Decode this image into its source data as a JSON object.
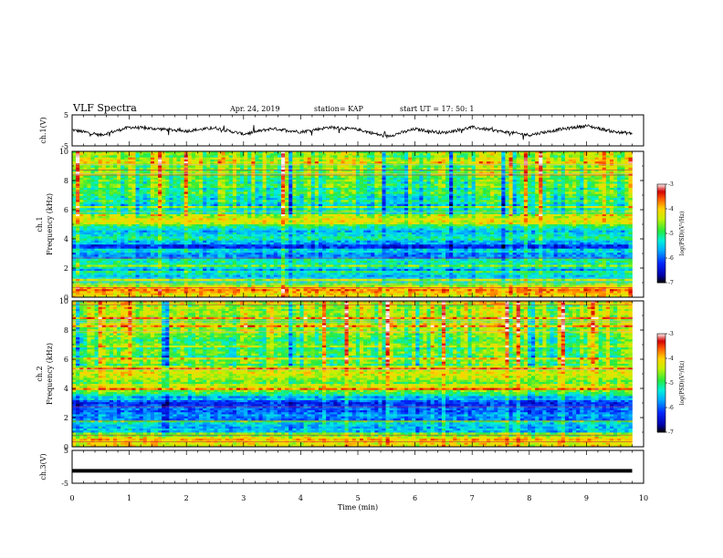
{
  "header": {
    "title": "VLF Spectra",
    "date": "Apr. 24, 2019",
    "station": "station= KAP",
    "start": "start  UT =   17: 50: 1"
  },
  "colorbar": {
    "label": "log(PSD)(V²/Hz)",
    "ticks": [
      "-3",
      "-4",
      "-5",
      "-6",
      "-7"
    ],
    "colors": [
      "#ffffff",
      "#ff0000",
      "#ffff00",
      "#00ff00",
      "#00ffff",
      "#0000ff",
      "#000000"
    ]
  },
  "chart_data": [
    {
      "type": "line",
      "panel": "ch1-waveform",
      "ylabel": "ch.1(V)",
      "ylim": [
        -5,
        5
      ],
      "yticks": [
        "5",
        "-5"
      ],
      "xlim": [
        0,
        10
      ],
      "description_series": "noisy voltage trace fluctuating roughly between -3 and 3 V",
      "x": [
        0,
        0.5,
        1,
        1.5,
        2,
        2.5,
        3,
        3.5,
        4,
        4.5,
        5,
        5.5,
        6,
        6.5,
        7,
        7.5,
        8,
        8.5,
        9,
        9.5,
        9.8
      ],
      "y": [
        0.2,
        -1.5,
        1.0,
        0.5,
        -0.2,
        0.8,
        -1.2,
        0.6,
        -0.5,
        1.0,
        0.3,
        -2.0,
        0.4,
        -0.8,
        1.0,
        -0.3,
        -1.5,
        0.2,
        1.5,
        -0.5,
        -1.0
      ]
    },
    {
      "type": "heatmap",
      "panel": "ch1-spectrogram",
      "ylabel": "ch.1 Frequency (kHz)",
      "ylim": [
        0,
        10
      ],
      "yticks": [
        "10",
        "8",
        "6",
        "4",
        "2",
        "0"
      ],
      "xlim": [
        0,
        9.8
      ],
      "zlabel": "log(PSD)(V²/Hz)",
      "zlim": [
        -7,
        -3
      ],
      "level_by_freq": [
        [
          0.0,
          -4.0
        ],
        [
          0.5,
          -3.8
        ],
        [
          1.0,
          -5.2
        ],
        [
          1.5,
          -5.4
        ],
        [
          2.0,
          -5.6
        ],
        [
          2.5,
          -5.2
        ],
        [
          3.0,
          -6.0
        ],
        [
          3.5,
          -6.2
        ],
        [
          4.0,
          -5.2
        ],
        [
          4.5,
          -5.5
        ],
        [
          5.0,
          -4.6
        ],
        [
          5.5,
          -4.2
        ],
        [
          6.0,
          -5.4
        ],
        [
          7.0,
          -5.0
        ],
        [
          8.0,
          -4.8
        ],
        [
          9.0,
          -4.5
        ],
        [
          10.0,
          -4.5
        ]
      ]
    },
    {
      "type": "heatmap",
      "panel": "ch2-spectrogram",
      "ylabel": "ch.2 Frequency (kHz)",
      "ylim": [
        0,
        10
      ],
      "yticks": [
        "10",
        "8",
        "6",
        "4",
        "2",
        "0"
      ],
      "xlim": [
        0,
        9.8
      ],
      "zlabel": "log(PSD)(V²/Hz)",
      "zlim": [
        -7,
        -3
      ],
      "level_by_freq": [
        [
          0.0,
          -4.2
        ],
        [
          0.5,
          -4.0
        ],
        [
          1.0,
          -5.4
        ],
        [
          1.5,
          -5.6
        ],
        [
          2.0,
          -5.8
        ],
        [
          2.5,
          -6.2
        ],
        [
          3.0,
          -6.0
        ],
        [
          3.5,
          -5.4
        ],
        [
          4.0,
          -4.3
        ],
        [
          4.5,
          -4.6
        ],
        [
          5.0,
          -4.4
        ],
        [
          6.0,
          -4.9
        ],
        [
          7.0,
          -4.8
        ],
        [
          8.0,
          -4.5
        ],
        [
          9.0,
          -4.4
        ],
        [
          10.0,
          -4.4
        ]
      ]
    },
    {
      "type": "line",
      "panel": "ch3-waveform",
      "ylabel": "ch.3(V)",
      "ylim": [
        -5,
        5
      ],
      "yticks": [
        "5",
        "-5"
      ],
      "xlim": [
        0,
        10
      ],
      "x": [
        0,
        9.8
      ],
      "y": [
        -1.2,
        -1.2
      ]
    }
  ],
  "xaxis": {
    "label": "Time (min)",
    "ticks": [
      "0",
      "1",
      "2",
      "3",
      "4",
      "5",
      "6",
      "7",
      "8",
      "9",
      "10"
    ]
  }
}
